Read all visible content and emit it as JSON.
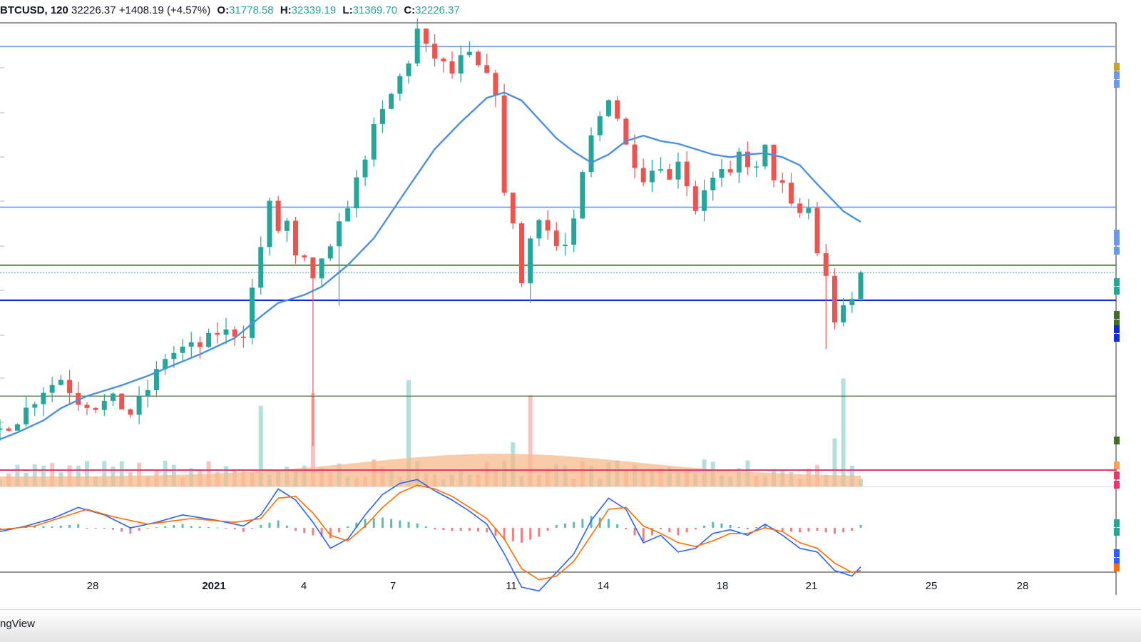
{
  "header": {
    "symbol": "BTCUSD",
    "interval": "120",
    "last": "32226.37",
    "change": "+1408.19 (+4.57%)",
    "open_label": "O:",
    "open": "31778.58",
    "high_label": "H:",
    "high": "32339.19",
    "low_label": "L:",
    "low": "31369.70",
    "close_label": "C:",
    "close": "32226.37"
  },
  "brand": "ngView",
  "colors": {
    "up": "#26a69a",
    "down": "#ef5350",
    "ma": "#4a90e2",
    "macd": "#2962ff",
    "signal": "#ff6d00",
    "volume_ma": "#f7b98b",
    "level_blue_light": "#6b9be3",
    "level_blue_dark": "#0a2bd6",
    "level_green": "#3f6f2a",
    "level_red": "#e3386d"
  },
  "chart_data": {
    "type": "candlestick",
    "x_ticks": [
      {
        "label": "28",
        "bold": false
      },
      {
        "label": "2021",
        "bold": true
      },
      {
        "label": "4",
        "bold": false
      },
      {
        "label": "7",
        "bold": false
      },
      {
        "label": "11",
        "bold": false
      },
      {
        "label": "14",
        "bold": false
      },
      {
        "label": "18",
        "bold": false
      },
      {
        "label": "21",
        "bold": false
      },
      {
        "label": "25",
        "bold": false
      },
      {
        "label": "28",
        "bold": false
      }
    ],
    "price_path": [
      [
        0,
        26400
      ],
      [
        2,
        26800
      ],
      [
        5,
        27900
      ],
      [
        7,
        28300
      ],
      [
        9,
        27500
      ],
      [
        11,
        27300
      ],
      [
        13,
        27500
      ],
      [
        15,
        27000
      ],
      [
        17,
        27900
      ],
      [
        19,
        29100
      ],
      [
        21,
        29400
      ],
      [
        23,
        29500
      ],
      [
        25,
        30000
      ],
      [
        28,
        30000
      ],
      [
        30,
        33200
      ],
      [
        31,
        34700
      ],
      [
        32,
        33800
      ],
      [
        33,
        34100
      ],
      [
        34,
        32700
      ],
      [
        35,
        32600
      ],
      [
        36,
        31800
      ],
      [
        37,
        32800
      ],
      [
        38,
        33000
      ],
      [
        40,
        34800
      ],
      [
        41,
        35600
      ],
      [
        42,
        36600
      ],
      [
        43,
        37500
      ],
      [
        45,
        38800
      ],
      [
        47,
        40100
      ],
      [
        48,
        41200
      ],
      [
        49,
        40500
      ],
      [
        50,
        40200
      ],
      [
        52,
        39600
      ],
      [
        53,
        40100
      ],
      [
        54,
        40200
      ],
      [
        55,
        39800
      ],
      [
        57,
        39000
      ],
      [
        58,
        35000
      ],
      [
        59,
        34200
      ],
      [
        60,
        31800
      ],
      [
        61,
        33500
      ],
      [
        62,
        34400
      ],
      [
        63,
        33800
      ],
      [
        64,
        33200
      ],
      [
        65,
        33200
      ],
      [
        66,
        34000
      ],
      [
        67,
        35800
      ],
      [
        68,
        37200
      ],
      [
        70,
        38800
      ],
      [
        71,
        38000
      ],
      [
        72,
        36900
      ],
      [
        74,
        35800
      ],
      [
        76,
        36300
      ],
      [
        77,
        35600
      ],
      [
        78,
        36500
      ],
      [
        80,
        34600
      ],
      [
        81,
        35400
      ],
      [
        83,
        35900
      ],
      [
        84,
        35700
      ],
      [
        85,
        36600
      ],
      [
        87,
        36000
      ],
      [
        88,
        36800
      ],
      [
        89,
        35800
      ],
      [
        90,
        35400
      ],
      [
        91,
        34600
      ],
      [
        92,
        34400
      ],
      [
        93,
        34600
      ],
      [
        94,
        33000
      ],
      [
        95,
        32000
      ],
      [
        96,
        30500
      ],
      [
        97,
        30800
      ],
      [
        98,
        31200
      ],
      [
        99,
        32200
      ]
    ],
    "ma_path": [
      [
        0,
        26050
      ],
      [
        2,
        26300
      ],
      [
        5,
        26750
      ],
      [
        7,
        27200
      ],
      [
        10,
        27650
      ],
      [
        14,
        28050
      ],
      [
        17,
        28400
      ],
      [
        20,
        28800
      ],
      [
        23,
        29200
      ],
      [
        27,
        29800
      ],
      [
        30,
        30600
      ],
      [
        32,
        31100
      ],
      [
        35,
        31400
      ],
      [
        37,
        31700
      ],
      [
        40,
        32500
      ],
      [
        43,
        33500
      ],
      [
        47,
        35400
      ],
      [
        50,
        36800
      ],
      [
        53,
        37800
      ],
      [
        56,
        38700
      ],
      [
        58,
        38900
      ],
      [
        60,
        38600
      ],
      [
        62,
        37900
      ],
      [
        64,
        37200
      ],
      [
        66,
        36700
      ],
      [
        68,
        36300
      ],
      [
        70,
        36600
      ],
      [
        72,
        37100
      ],
      [
        74,
        37300
      ],
      [
        76,
        37100
      ],
      [
        78,
        37000
      ],
      [
        80,
        36800
      ],
      [
        82,
        36600
      ],
      [
        84,
        36500
      ],
      [
        86,
        36600
      ],
      [
        88,
        36650
      ],
      [
        90,
        36500
      ],
      [
        92,
        36200
      ],
      [
        94,
        35500
      ],
      [
        97,
        34500
      ],
      [
        99,
        34100
      ]
    ],
    "levels": [
      {
        "price": 40600,
        "color": "#6b9be3",
        "width": 1.6
      },
      {
        "price": 34650,
        "color": "#6b9be3",
        "width": 1.6
      },
      {
        "price": 32500,
        "color": "#3f6f2a",
        "width": 1.8
      },
      {
        "price": 31200,
        "color": "#0a2bd6",
        "width": 2.2
      },
      {
        "price": 27650,
        "color": "#3f6f2a",
        "width": 1.2
      }
    ],
    "spikes": [
      {
        "i": 36,
        "low": 25800
      },
      {
        "i": 61,
        "low": 31100
      },
      {
        "i": 95,
        "low": 29400
      },
      {
        "i": 39,
        "low": 31000
      }
    ],
    "volume_level_color": "#e3386d",
    "macd_path": [
      [
        0,
        -0.1
      ],
      [
        3,
        0.05
      ],
      [
        6,
        0.25
      ],
      [
        9,
        0.55
      ],
      [
        12,
        0.35
      ],
      [
        15,
        0.0
      ],
      [
        18,
        0.15
      ],
      [
        21,
        0.35
      ],
      [
        25,
        0.2
      ],
      [
        28,
        0.05
      ],
      [
        30,
        0.35
      ],
      [
        32,
        1.05
      ],
      [
        34,
        0.75
      ],
      [
        36,
        0.15
      ],
      [
        38,
        -0.55
      ],
      [
        40,
        -0.3
      ],
      [
        42,
        0.35
      ],
      [
        44,
        0.9
      ],
      [
        46,
        1.2
      ],
      [
        48,
        1.3
      ],
      [
        50,
        1.0
      ],
      [
        52,
        0.75
      ],
      [
        54,
        0.45
      ],
      [
        56,
        0.1
      ],
      [
        58,
        -0.7
      ],
      [
        60,
        -1.6
      ],
      [
        62,
        -1.7
      ],
      [
        64,
        -1.2
      ],
      [
        66,
        -0.7
      ],
      [
        68,
        0.2
      ],
      [
        70,
        0.8
      ],
      [
        72,
        0.5
      ],
      [
        74,
        -0.4
      ],
      [
        76,
        -0.2
      ],
      [
        78,
        -0.65
      ],
      [
        80,
        -0.55
      ],
      [
        82,
        -0.15
      ],
      [
        84,
        -0.05
      ],
      [
        86,
        -0.2
      ],
      [
        88,
        0.1
      ],
      [
        90,
        -0.2
      ],
      [
        92,
        -0.55
      ],
      [
        94,
        -0.65
      ],
      [
        96,
        -1.15
      ],
      [
        98,
        -1.3
      ],
      [
        99,
        -1.05
      ]
    ],
    "signal_path": [
      [
        0,
        -0.05
      ],
      [
        4,
        0.05
      ],
      [
        8,
        0.35
      ],
      [
        10,
        0.5
      ],
      [
        13,
        0.3
      ],
      [
        17,
        0.1
      ],
      [
        22,
        0.25
      ],
      [
        27,
        0.15
      ],
      [
        30,
        0.25
      ],
      [
        32,
        0.8
      ],
      [
        34,
        0.85
      ],
      [
        36,
        0.4
      ],
      [
        38,
        -0.2
      ],
      [
        40,
        -0.35
      ],
      [
        42,
        0.05
      ],
      [
        44,
        0.55
      ],
      [
        46,
        0.95
      ],
      [
        48,
        1.15
      ],
      [
        50,
        1.05
      ],
      [
        52,
        0.85
      ],
      [
        54,
        0.55
      ],
      [
        56,
        0.25
      ],
      [
        58,
        -0.3
      ],
      [
        60,
        -1.1
      ],
      [
        62,
        -1.4
      ],
      [
        64,
        -1.3
      ],
      [
        66,
        -0.9
      ],
      [
        68,
        -0.2
      ],
      [
        70,
        0.5
      ],
      [
        72,
        0.55
      ],
      [
        74,
        0.05
      ],
      [
        76,
        -0.15
      ],
      [
        78,
        -0.4
      ],
      [
        80,
        -0.5
      ],
      [
        82,
        -0.35
      ],
      [
        84,
        -0.15
      ],
      [
        86,
        -0.15
      ],
      [
        88,
        0.0
      ],
      [
        90,
        -0.1
      ],
      [
        92,
        -0.4
      ],
      [
        94,
        -0.55
      ],
      [
        96,
        -0.95
      ],
      [
        98,
        -1.2
      ],
      [
        99,
        -1.15
      ]
    ]
  }
}
